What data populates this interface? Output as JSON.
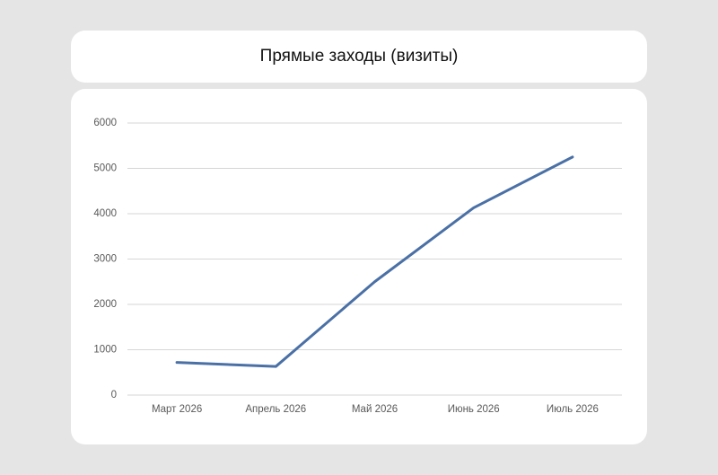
{
  "chart_data": {
    "type": "line",
    "title": "Прямые заходы (визиты)",
    "categories": [
      "Март 2026",
      "Апрель 2026",
      "Май 2026",
      "Июнь 2026",
      "Июль 2026"
    ],
    "values": [
      720,
      630,
      2500,
      4130,
      5250
    ],
    "color": "#4a70a6",
    "ylim": [
      0,
      6000
    ],
    "yticks": [
      0,
      1000,
      2000,
      3000,
      4000,
      5000,
      6000
    ],
    "grid": true
  }
}
